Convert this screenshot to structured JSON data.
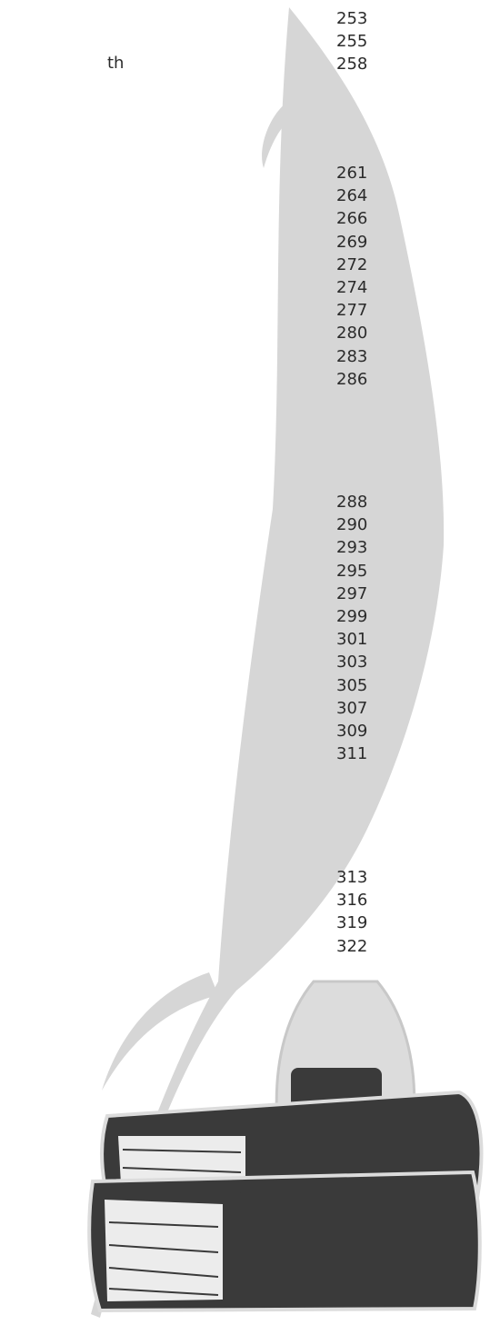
{
  "left_text": "th",
  "page_number_groups": [
    [
      253,
      255,
      258
    ],
    [
      261,
      264,
      266,
      269,
      272,
      274,
      277,
      280,
      283,
      286
    ],
    [
      288,
      290,
      293,
      295,
      297,
      299,
      301,
      303,
      305,
      307,
      309,
      311
    ],
    [
      313,
      316,
      319,
      322
    ]
  ]
}
